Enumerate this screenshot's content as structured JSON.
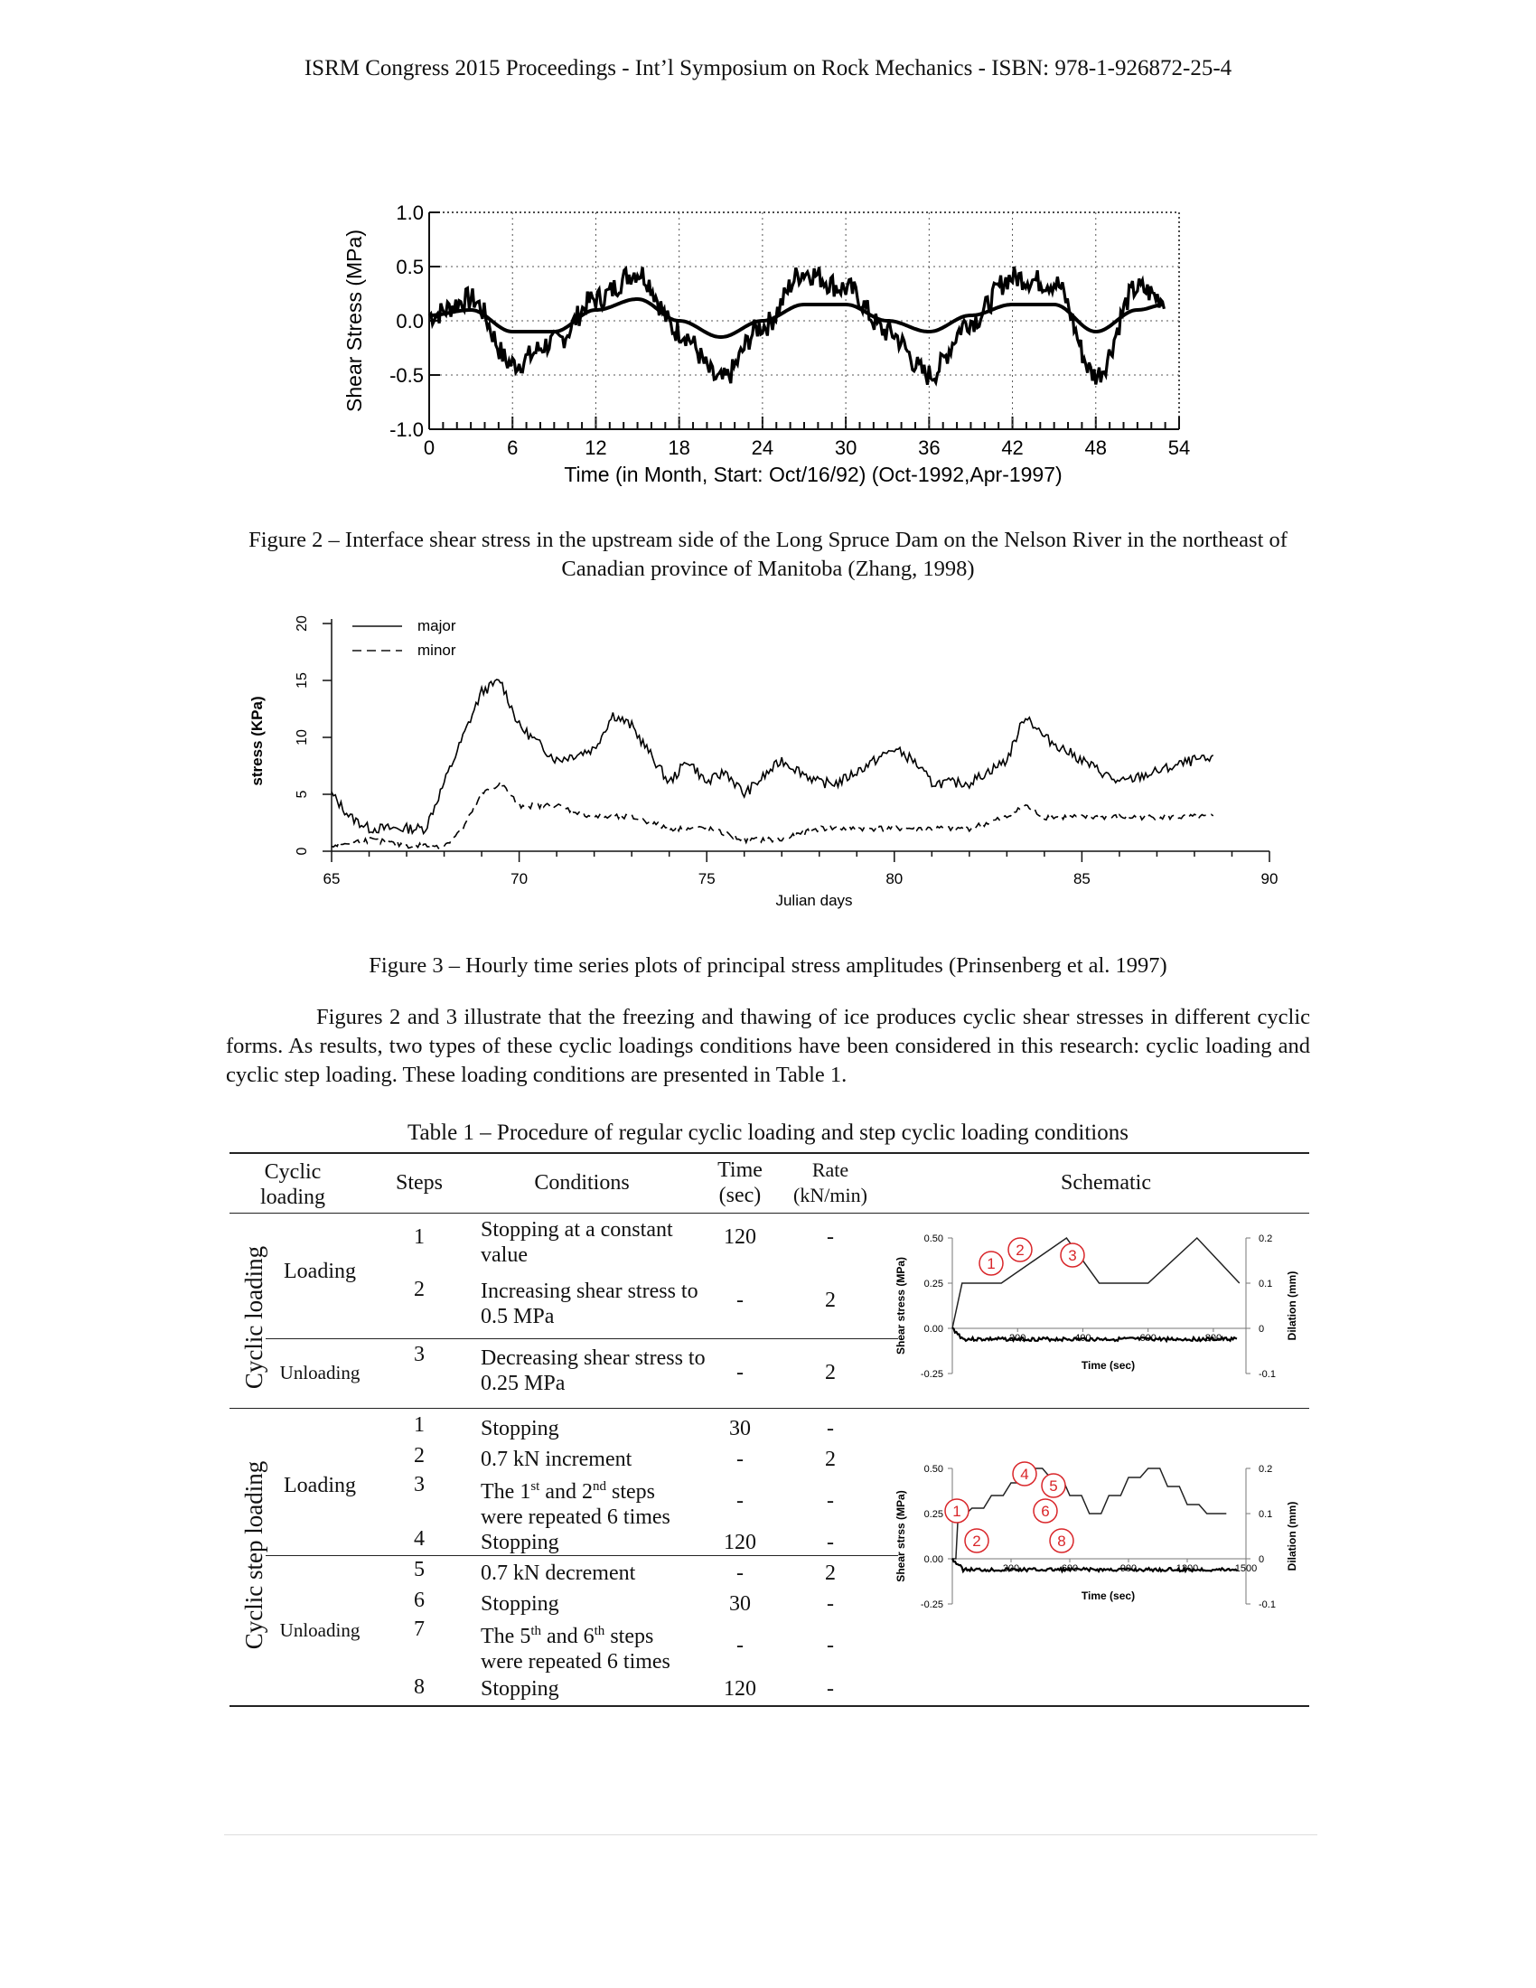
{
  "header": "ISRM Congress 2015 Proceedings - Int’l Symposium on Rock Mechanics - ISBN: 978-1-926872-25-4",
  "fig2": {
    "ylabel": "Shear Stress (MPa)",
    "xlabel": "Time (in Month, Start: Oct/16/92) (Oct-1992,Apr-1997)",
    "yticks": [
      "1.0",
      "0.5",
      "0.0",
      "-0.5",
      "-1.0"
    ],
    "xticks": [
      "0",
      "6",
      "12",
      "18",
      "24",
      "30",
      "36",
      "42",
      "48",
      "54"
    ],
    "caption": "Figure 2 – Interface shear stress in the upstream side of the Long Spruce Dam on the Nelson River in the northeast of Canadian province of Manitoba (Zhang, 1998)"
  },
  "fig3": {
    "ylabel": "stress (KPa)",
    "xlabel": "Julian days",
    "yticks": [
      "0",
      "5",
      "10",
      "15",
      "20"
    ],
    "xticks": [
      "65",
      "70",
      "75",
      "80",
      "85",
      "90"
    ],
    "legend": [
      "major",
      "minor"
    ],
    "caption": "Figure 3 – Hourly time series plots of principal stress amplitudes (Prinsenberg et al. 1997)"
  },
  "chart_data": [
    {
      "type": "line",
      "xlabel": "Time (in Month, Start: Oct/16/92) (Oct-1992,Apr-1997)",
      "ylabel": "Shear Stress (MPa)",
      "xlim": [
        0,
        54
      ],
      "ylim": [
        -1.0,
        1.0
      ],
      "series": [
        {
          "x": [
            0,
            3,
            6,
            9,
            12,
            15,
            18,
            21,
            24,
            27,
            30,
            33,
            36,
            39,
            42,
            45,
            48,
            51,
            53
          ],
          "values": [
            0.05,
            0.2,
            -0.4,
            -0.2,
            0.2,
            0.45,
            -0.1,
            -0.55,
            -0.05,
            0.45,
            0.3,
            -0.1,
            -0.5,
            0.0,
            0.4,
            0.35,
            -0.5,
            0.3,
            0.2
          ]
        },
        {
          "x": [
            0,
            3,
            6,
            9,
            12,
            15,
            18,
            21,
            24,
            27,
            30,
            33,
            36,
            39,
            42,
            45,
            48,
            51,
            53
          ],
          "values": [
            0.05,
            0.1,
            -0.1,
            -0.1,
            0.1,
            0.2,
            0.0,
            -0.15,
            0.0,
            0.15,
            0.15,
            0.0,
            -0.1,
            0.05,
            0.15,
            0.15,
            -0.1,
            0.1,
            0.15
          ]
        }
      ]
    },
    {
      "type": "line",
      "xlabel": "Julian days",
      "ylabel": "stress (KPa)",
      "xlim": [
        65,
        90
      ],
      "ylim": [
        0,
        20
      ],
      "series": [
        {
          "name": "major",
          "x": [
            65,
            65.5,
            66,
            67,
            67.5,
            68,
            68.5,
            69,
            69.5,
            70,
            71,
            72,
            72.5,
            73,
            74,
            74.5,
            75,
            75.5,
            76,
            77,
            78,
            78.5,
            79,
            80,
            80.5,
            81,
            82,
            83,
            83.5,
            84,
            85,
            86,
            87,
            88,
            88.5
          ],
          "values": [
            5,
            3,
            2,
            2,
            2,
            6,
            10,
            14,
            15,
            11,
            8,
            9,
            12,
            11,
            6,
            8,
            6,
            7,
            5,
            8,
            6,
            6,
            7,
            9,
            8,
            6,
            6,
            8,
            12,
            10,
            8,
            6,
            7,
            8,
            8
          ]
        },
        {
          "name": "minor",
          "x": [
            65,
            66,
            67,
            68,
            68.5,
            69,
            69.5,
            70,
            71,
            72,
            73,
            74,
            75,
            76,
            77,
            78,
            79,
            80,
            81,
            82,
            83,
            83.5,
            84,
            85,
            86,
            87,
            88,
            88.5
          ],
          "values": [
            0.5,
            1,
            0.5,
            0.5,
            2,
            5,
            6,
            4,
            4,
            3,
            3,
            2,
            2,
            1,
            1,
            2,
            2,
            2,
            2,
            2,
            3,
            4,
            3,
            3,
            3,
            3,
            3,
            3
          ]
        }
      ]
    },
    {
      "type": "line",
      "xlabel": "Time (sec)",
      "ylabel": "Shear stress (MPa)",
      "xlim": [
        0,
        900
      ],
      "ylim": [
        -0.25,
        0.5
      ],
      "series": [
        {
          "x": [
            0,
            30,
            150,
            350,
            450,
            600,
            750,
            880
          ],
          "values": [
            0,
            0.25,
            0.25,
            0.5,
            0.25,
            0.25,
            0.5,
            0.25
          ]
        }
      ]
    },
    {
      "type": "line",
      "xlabel": "Time (sec)",
      "ylabel": "Shear strss (MPa)",
      "xlim": [
        0,
        1500
      ],
      "ylim": [
        -0.25,
        0.5
      ],
      "series": [
        {
          "x": [
            0,
            30,
            100,
            200,
            300,
            400,
            500,
            600,
            700,
            800,
            900,
            1000,
            1100,
            1200,
            1300,
            1400
          ],
          "values": [
            0,
            0.25,
            0.28,
            0.35,
            0.42,
            0.5,
            0.45,
            0.35,
            0.25,
            0.35,
            0.45,
            0.5,
            0.4,
            0.3,
            0.25,
            0.25
          ]
        }
      ]
    }
  ],
  "body_text": "Figures 2 and 3 illustrate that the freezing and thawing of ice produces cyclic shear stresses in different cyclic forms. As results, two types of these cyclic loadings conditions have been considered in this research: cyclic loading and cyclic step loading. These loading conditions are presented in Table 1.",
  "table": {
    "title": "Table 1 – Procedure of regular cyclic loading and step cyclic loading conditions",
    "headers": {
      "cyclic": "Cyclic loading",
      "steps": "Steps",
      "conditions": "Conditions",
      "time": "Time (sec)",
      "rate": "Rate (kN/min)",
      "schematic": "Schematic"
    },
    "group1": {
      "label": "Cyclic loading",
      "loading": "Loading",
      "unloading": "Unloading",
      "rows": [
        {
          "step": "1",
          "cond": "Stopping at a constant value",
          "time": "120",
          "rate": "-"
        },
        {
          "step": "2",
          "cond": "Increasing shear stress to 0.5 MPa",
          "time": "-",
          "rate": "2"
        },
        {
          "step": "3",
          "cond": "Decreasing shear stress to 0.25 MPa",
          "time": "-",
          "rate": "2"
        }
      ]
    },
    "group2": {
      "label": "Cyclic step loading",
      "loading": "Loading",
      "unloading": "Unloading",
      "rows": [
        {
          "step": "1",
          "cond": "Stopping",
          "time": "30",
          "rate": "-"
        },
        {
          "step": "2",
          "cond": "0.7 kN increment",
          "time": "-",
          "rate": "2"
        },
        {
          "step": "3",
          "cond": "The 1st and 2nd steps were repeated 6 times",
          "time": "-",
          "rate": "-"
        },
        {
          "step": "4",
          "cond": "Stopping",
          "time": "120",
          "rate": "-"
        },
        {
          "step": "5",
          "cond": "0.7 kN decrement",
          "time": "-",
          "rate": "2"
        },
        {
          "step": "6",
          "cond": "Stopping",
          "time": "30",
          "rate": "-"
        },
        {
          "step": "7",
          "cond": "The 5th and 6th steps were repeated 6 times",
          "time": "-",
          "rate": "-"
        },
        {
          "step": "8",
          "cond": "Stopping",
          "time": "120",
          "rate": "-"
        }
      ]
    },
    "schem1": {
      "ylabel": "Shear stress (MPa)",
      "y2label": "Dilation (mm)",
      "xlabel": "Time (sec)",
      "yticks": [
        "0.50",
        "0.25",
        "0.00",
        "-0.25"
      ],
      "y2ticks": [
        "0.2",
        "0.1",
        "0",
        "-0.1"
      ],
      "xticks": [
        "200",
        "400",
        "600",
        "800"
      ],
      "markers": [
        "1",
        "2",
        "3"
      ]
    },
    "schem2": {
      "ylabel": "Shear strss (MPa)",
      "y2label": "Dilation (mm)",
      "xlabel": "Time (sec)",
      "yticks": [
        "0.50",
        "0.25",
        "0.00",
        "-0.25"
      ],
      "y2ticks": [
        "0.2",
        "0.1",
        "0",
        "-0.1"
      ],
      "xticks": [
        "300",
        "600",
        "900",
        "1200",
        "1500"
      ],
      "markers": [
        "1",
        "2",
        "4",
        "5",
        "6",
        "8"
      ]
    },
    "marker_color": "#d9262a"
  }
}
